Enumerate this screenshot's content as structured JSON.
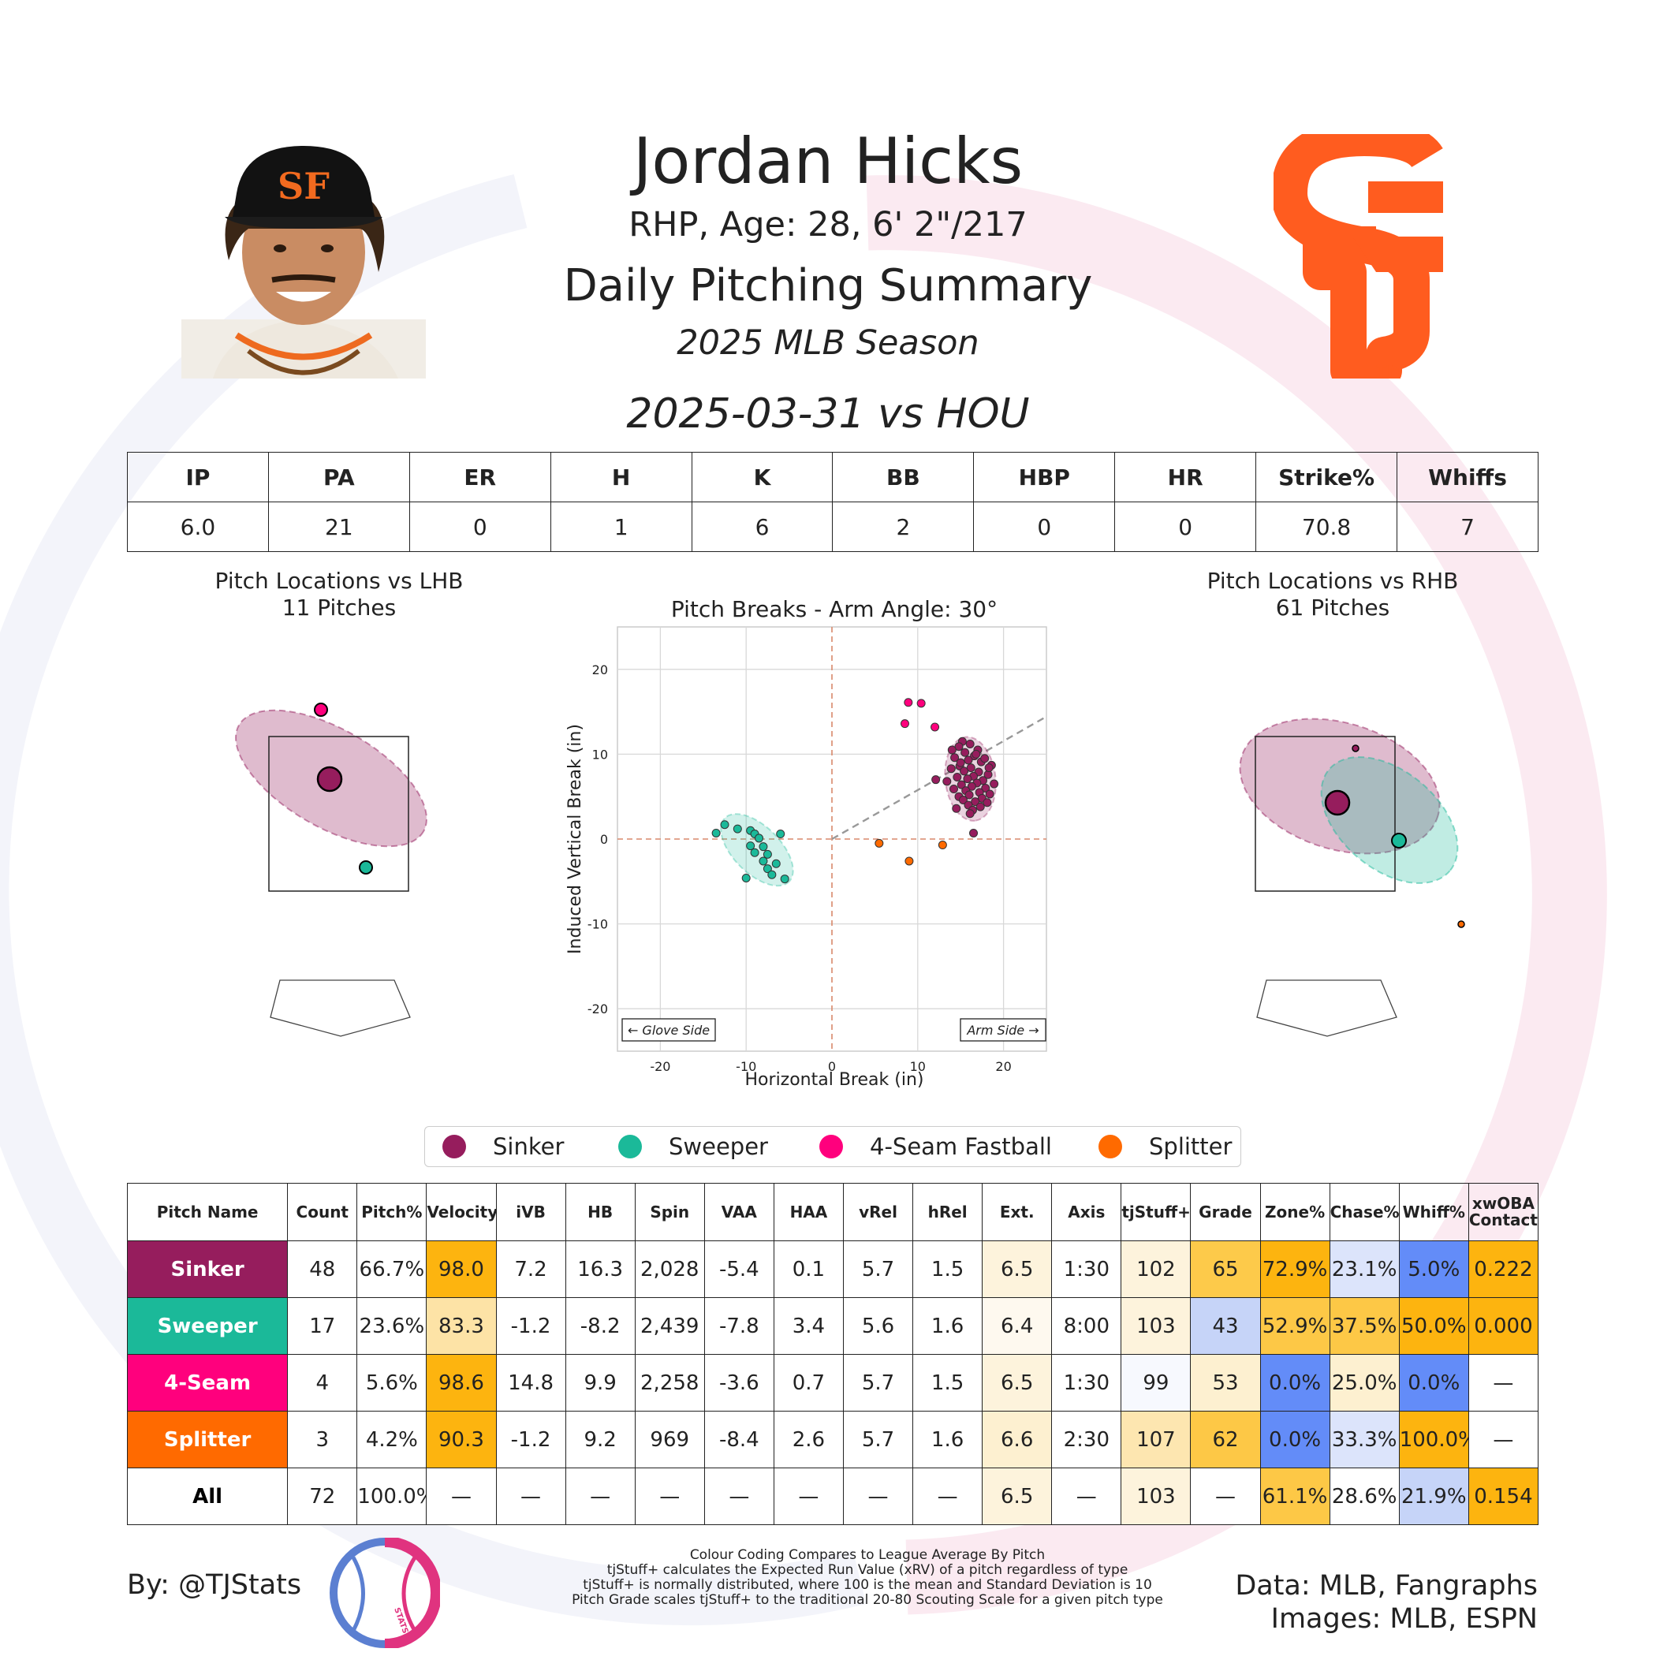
{
  "header": {
    "player_name": "Jordan Hicks",
    "player_info": "RHP, Age: 28, 6' 2\"/217",
    "report_title": "Daily Pitching Summary",
    "season": "2025 MLB Season",
    "game": "2025-03-31 vs HOU",
    "team_logo_text": "SF"
  },
  "stats": {
    "headers": [
      "IP",
      "PA",
      "ER",
      "H",
      "K",
      "BB",
      "HBP",
      "HR",
      "Strike%",
      "Whiffs"
    ],
    "values": [
      "6.0",
      "21",
      "0",
      "1",
      "6",
      "2",
      "0",
      "0",
      "70.8",
      "7"
    ]
  },
  "colors": {
    "Sinker": "#961d5d",
    "Sweeper": "#1bb999",
    "4-Seam Fastball": "#ff007d",
    "Splitter": "#ff6a00",
    "heat_high": "#fdb40f",
    "heat_mid_high": "#fdd46c",
    "heat_light": "#fdf0d0",
    "heat_neutral": "#f7f7f7",
    "heat_cool_light": "#dce4fb",
    "heat_cool": "#c6d4f8",
    "heat_low": "#638cf8"
  },
  "loc_lhb": {
    "title": "Pitch Locations vs LHB",
    "count": "11 Pitches"
  },
  "loc_rhb": {
    "title": "Pitch Locations vs RHB",
    "count": "61 Pitches"
  },
  "chart_data": {
    "type": "scatter",
    "title": "Pitch Breaks - Arm Angle: 30°",
    "xlabel": "Horizontal Break (in)",
    "ylabel": "Induced Vertical Break (in)",
    "xlim": [
      -25,
      25
    ],
    "ylim": [
      -25,
      25
    ],
    "xticks": [
      -20,
      -10,
      0,
      10,
      20
    ],
    "yticks": [
      -20,
      -10,
      0,
      10,
      20
    ],
    "grid": true,
    "arm_angle_deg": 30,
    "annotations": [
      "← Glove Side",
      "Arm Side →"
    ],
    "series": [
      {
        "name": "Sinker",
        "points": [
          [
            15.2,
            11.5
          ],
          [
            16.1,
            11.2
          ],
          [
            14.8,
            10.9
          ],
          [
            17.0,
            10.5
          ],
          [
            15.5,
            10.2
          ],
          [
            16.6,
            9.8
          ],
          [
            14.3,
            9.6
          ],
          [
            15.9,
            9.3
          ],
          [
            17.4,
            9.1
          ],
          [
            18.6,
            8.7
          ],
          [
            14.9,
            8.6
          ],
          [
            16.2,
            8.4
          ],
          [
            13.9,
            8.3
          ],
          [
            15.4,
            8.0
          ],
          [
            17.1,
            7.9
          ],
          [
            18.2,
            7.6
          ],
          [
            16.5,
            7.4
          ],
          [
            14.6,
            7.3
          ],
          [
            15.8,
            7.1
          ],
          [
            17.6,
            6.9
          ],
          [
            13.4,
            6.8
          ],
          [
            16.9,
            6.6
          ],
          [
            18.9,
            6.5
          ],
          [
            15.1,
            6.4
          ],
          [
            16.3,
            6.2
          ],
          [
            17.9,
            6.0
          ],
          [
            14.2,
            5.9
          ],
          [
            15.6,
            5.7
          ],
          [
            17.2,
            5.5
          ],
          [
            18.4,
            5.3
          ],
          [
            16.0,
            5.2
          ],
          [
            14.8,
            5.0
          ],
          [
            17.5,
            4.8
          ],
          [
            15.3,
            4.6
          ],
          [
            16.7,
            4.4
          ],
          [
            18.1,
            4.3
          ],
          [
            15.9,
            4.0
          ],
          [
            17.3,
            3.8
          ],
          [
            14.5,
            3.6
          ],
          [
            16.4,
            3.4
          ],
          [
            12.1,
            7.0
          ],
          [
            18.3,
            8.4
          ],
          [
            14.0,
            10.5
          ],
          [
            16.8,
            10.0
          ],
          [
            15.0,
            9.0
          ],
          [
            17.8,
            9.5
          ],
          [
            16.1,
            3.0
          ],
          [
            16.5,
            0.7
          ]
        ]
      },
      {
        "name": "Sweeper",
        "points": [
          [
            -12.5,
            1.7
          ],
          [
            -11.0,
            1.2
          ],
          [
            -13.5,
            0.7
          ],
          [
            -9.5,
            1.0
          ],
          [
            -9.0,
            0.6
          ],
          [
            -6.0,
            0.6
          ],
          [
            -8.5,
            0.1
          ],
          [
            -9.5,
            -0.8
          ],
          [
            -8.0,
            -0.9
          ],
          [
            -9.0,
            -1.6
          ],
          [
            -7.5,
            -1.8
          ],
          [
            -8.0,
            -2.6
          ],
          [
            -6.5,
            -2.9
          ],
          [
            -7.5,
            -3.5
          ],
          [
            -10.0,
            -4.6
          ],
          [
            -5.5,
            -4.7
          ],
          [
            -7.0,
            -4.2
          ]
        ]
      },
      {
        "name": "4-Seam Fastball",
        "points": [
          [
            8.9,
            16.1
          ],
          [
            10.4,
            16.0
          ],
          [
            8.5,
            13.6
          ],
          [
            12.0,
            13.2
          ]
        ]
      },
      {
        "name": "Splitter",
        "points": [
          [
            5.5,
            -0.5
          ],
          [
            9.0,
            -2.6
          ],
          [
            12.9,
            -0.7
          ]
        ]
      }
    ]
  },
  "legend": [
    "Sinker",
    "Sweeper",
    "4-Seam Fastball",
    "Splitter"
  ],
  "pitch_table": {
    "headers": [
      "Pitch Name",
      "Count",
      "Pitch%",
      "Velocity",
      "iVB",
      "HB",
      "Spin",
      "VAA",
      "HAA",
      "vRel",
      "hRel",
      "Ext.",
      "Axis",
      "tjStuff+",
      "Grade",
      "Zone%",
      "Chase%",
      "Whiff%",
      "xwOBA Contact"
    ],
    "rows": [
      {
        "name": "Sinker",
        "color": "#961d5d",
        "cells": [
          "48",
          "66.7%",
          "98.0",
          "7.2",
          "16.3",
          "2,028",
          "-5.4",
          "0.1",
          "5.7",
          "1.5",
          "6.5",
          "1:30",
          "102",
          "65",
          "72.9%",
          "23.1%",
          "5.0%",
          "0.222"
        ],
        "bg": [
          "#fff",
          "#fff",
          "#fdb40f",
          "#fff",
          "#fff",
          "#fff",
          "#fff",
          "#fff",
          "#fff",
          "#fff",
          "#fdf3dc",
          "#fff",
          "#fdf3dc",
          "#fdca4a",
          "#fdb40f",
          "#dce4fb",
          "#638cf8",
          "#fdb40f"
        ]
      },
      {
        "name": "Sweeper",
        "color": "#1bb999",
        "cells": [
          "17",
          "23.6%",
          "83.3",
          "-1.2",
          "-8.2",
          "2,439",
          "-7.8",
          "3.4",
          "5.6",
          "1.6",
          "6.4",
          "8:00",
          "103",
          "43",
          "52.9%",
          "37.5%",
          "50.0%",
          "0.000"
        ],
        "bg": [
          "#fff",
          "#fff",
          "#fde3a6",
          "#fff",
          "#fff",
          "#fff",
          "#fff",
          "#fff",
          "#fff",
          "#fff",
          "#fef9ef",
          "#fff",
          "#fdf3dc",
          "#c6d4f8",
          "#fdc846",
          "#fdc846",
          "#fdb40f",
          "#fdb40f"
        ]
      },
      {
        "name": "4-Seam",
        "color": "#ff007d",
        "cells": [
          "4",
          "5.6%",
          "98.6",
          "14.8",
          "9.9",
          "2,258",
          "-3.6",
          "0.7",
          "5.7",
          "1.5",
          "6.5",
          "1:30",
          "99",
          "53",
          "0.0%",
          "25.0%",
          "0.0%",
          "—"
        ],
        "bg": [
          "#fff",
          "#fff",
          "#fdb40f",
          "#fff",
          "#fff",
          "#fff",
          "#fff",
          "#fff",
          "#fff",
          "#fff",
          "#fdf3dc",
          "#fff",
          "#f7f9fe",
          "#fdf0d0",
          "#638cf8",
          "#fdf0d0",
          "#638cf8",
          "#fff"
        ]
      },
      {
        "name": "Splitter",
        "color": "#ff6a00",
        "cells": [
          "3",
          "4.2%",
          "90.3",
          "-1.2",
          "9.2",
          "969",
          "-8.4",
          "2.6",
          "5.7",
          "1.6",
          "6.6",
          "2:30",
          "107",
          "62",
          "0.0%",
          "33.3%",
          "100.0%",
          "—"
        ],
        "bg": [
          "#fff",
          "#fff",
          "#fdb40f",
          "#fff",
          "#fff",
          "#fff",
          "#fff",
          "#fff",
          "#fff",
          "#fff",
          "#fdf0d0",
          "#fff",
          "#fde6b0",
          "#fdc846",
          "#638cf8",
          "#dce4fb",
          "#fdb40f",
          "#fff"
        ]
      },
      {
        "name": "All",
        "color": "#ffffff",
        "cells": [
          "72",
          "100.0%",
          "—",
          "—",
          "—",
          "—",
          "—",
          "—",
          "—",
          "—",
          "6.5",
          "—",
          "103",
          "—",
          "61.1%",
          "28.6%",
          "21.9%",
          "0.154"
        ],
        "bg": [
          "#fff",
          "#fff",
          "#fff",
          "#fff",
          "#fff",
          "#fff",
          "#fff",
          "#fff",
          "#fff",
          "#fff",
          "#fdf3dc",
          "#fff",
          "#fdf3dc",
          "#fff",
          "#fdc846",
          "#fff",
          "#c6d4f8",
          "#fdb40f"
        ]
      }
    ]
  },
  "footer": {
    "by": "By: @TJStats",
    "logo_text": "STATS",
    "notes": [
      "Colour Coding Compares to League Average By Pitch",
      "tjStuff+ calculates the Expected Run Value (xRV) of a pitch regardless of type",
      "tjStuff+ is normally distributed, where 100 is the mean and Standard Deviation is 10",
      "Pitch Grade scales tjStuff+ to the traditional 20-80 Scouting Scale for a given pitch type"
    ],
    "data_source": "Data: MLB, Fangraphs",
    "image_source": "Images: MLB, ESPN"
  }
}
